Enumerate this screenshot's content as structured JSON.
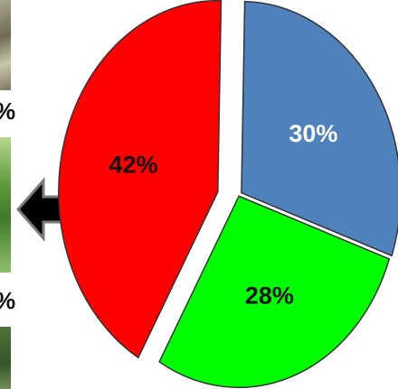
{
  "left_labels": {
    "top": "%",
    "bottom": "%"
  },
  "chart_data": {
    "type": "pie",
    "title": "",
    "slices": [
      {
        "label": "30%",
        "value": 30,
        "color": "#4f81bd",
        "label_color": "#ffffff"
      },
      {
        "label": "28%",
        "value": 28,
        "color": "#00ff00",
        "label_color": "#111111"
      },
      {
        "label": "42%",
        "value": 42,
        "color": "#ff0000",
        "label_color": "#111111"
      }
    ],
    "exploded": "42%",
    "legend": "none",
    "arrow_direction": "left"
  }
}
